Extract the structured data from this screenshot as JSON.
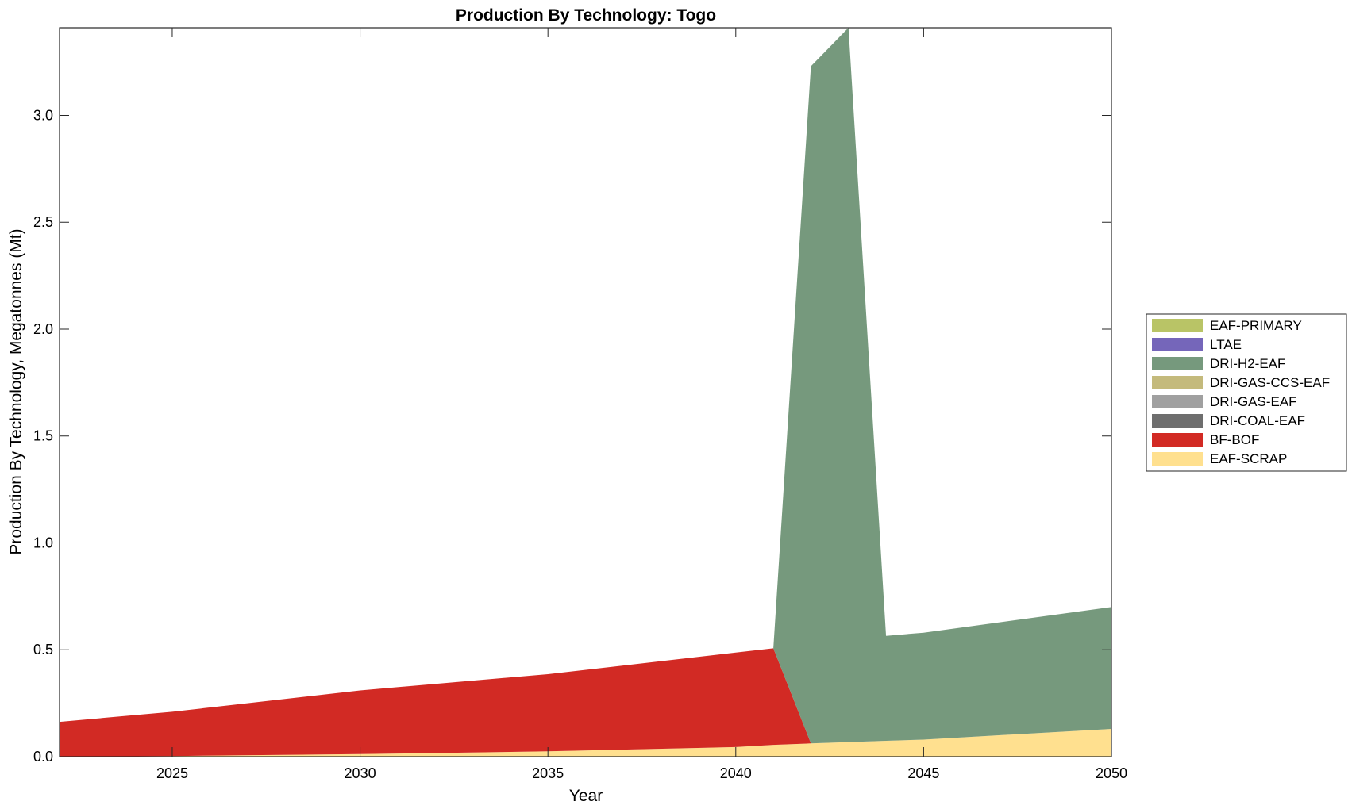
{
  "chart_data": {
    "type": "area",
    "stacked": true,
    "title": "Production By Technology: Togo",
    "xlabel": "Year",
    "ylabel": "Production By Technology, Megatonnes (Mt)",
    "xlim": [
      2022,
      2050
    ],
    "ylim": [
      0,
      3.41
    ],
    "xticks": [
      2025,
      2030,
      2035,
      2040,
      2045,
      2050
    ],
    "yticks": [
      0.0,
      0.5,
      1.0,
      1.5,
      2.0,
      2.5,
      3.0
    ],
    "ytick_labels": [
      "0.0",
      "0.5",
      "1.0",
      "1.5",
      "2.0",
      "2.5",
      "3.0"
    ],
    "grid": false,
    "legend_position": "right",
    "x": [
      2022,
      2025,
      2030,
      2035,
      2040,
      2041,
      2042,
      2043,
      2044,
      2045,
      2050
    ],
    "series": [
      {
        "name": "EAF-SCRAP",
        "color": "#FFE08F",
        "values": [
          0.0,
          0.003,
          0.012,
          0.025,
          0.045,
          0.055,
          0.062,
          0.068,
          0.074,
          0.08,
          0.13
        ]
      },
      {
        "name": "BF-BOF",
        "color": "#D22A24",
        "values": [
          0.163,
          0.207,
          0.298,
          0.361,
          0.442,
          0.452,
          0.0,
          0.0,
          0.0,
          0.0,
          0.0
        ]
      },
      {
        "name": "DRI-COAL-EAF",
        "color": "#6E6E6E",
        "values": [
          0,
          0,
          0,
          0,
          0,
          0,
          0,
          0,
          0,
          0,
          0
        ]
      },
      {
        "name": "DRI-GAS-EAF",
        "color": "#A0A0A0",
        "values": [
          0,
          0,
          0,
          0,
          0,
          0,
          0,
          0,
          0,
          0,
          0
        ]
      },
      {
        "name": "DRI-GAS-CCS-EAF",
        "color": "#C4BA7C",
        "values": [
          0,
          0,
          0,
          0,
          0,
          0,
          0,
          0,
          0,
          0,
          0
        ]
      },
      {
        "name": "DRI-H2-EAF",
        "color": "#76997D",
        "values": [
          0.0,
          0.0,
          0.0,
          0.0,
          0.0,
          0.0,
          3.168,
          3.342,
          0.491,
          0.5,
          0.57
        ]
      },
      {
        "name": "LTAE",
        "color": "#7566BA",
        "values": [
          0,
          0,
          0,
          0,
          0,
          0,
          0,
          0,
          0,
          0,
          0
        ]
      },
      {
        "name": "EAF-PRIMARY",
        "color": "#B9C466",
        "values": [
          0,
          0,
          0,
          0,
          0,
          0,
          0,
          0,
          0,
          0,
          0
        ]
      }
    ],
    "legend_order": [
      "EAF-PRIMARY",
      "LTAE",
      "DRI-H2-EAF",
      "DRI-GAS-CCS-EAF",
      "DRI-GAS-EAF",
      "DRI-COAL-EAF",
      "BF-BOF",
      "EAF-SCRAP"
    ]
  }
}
